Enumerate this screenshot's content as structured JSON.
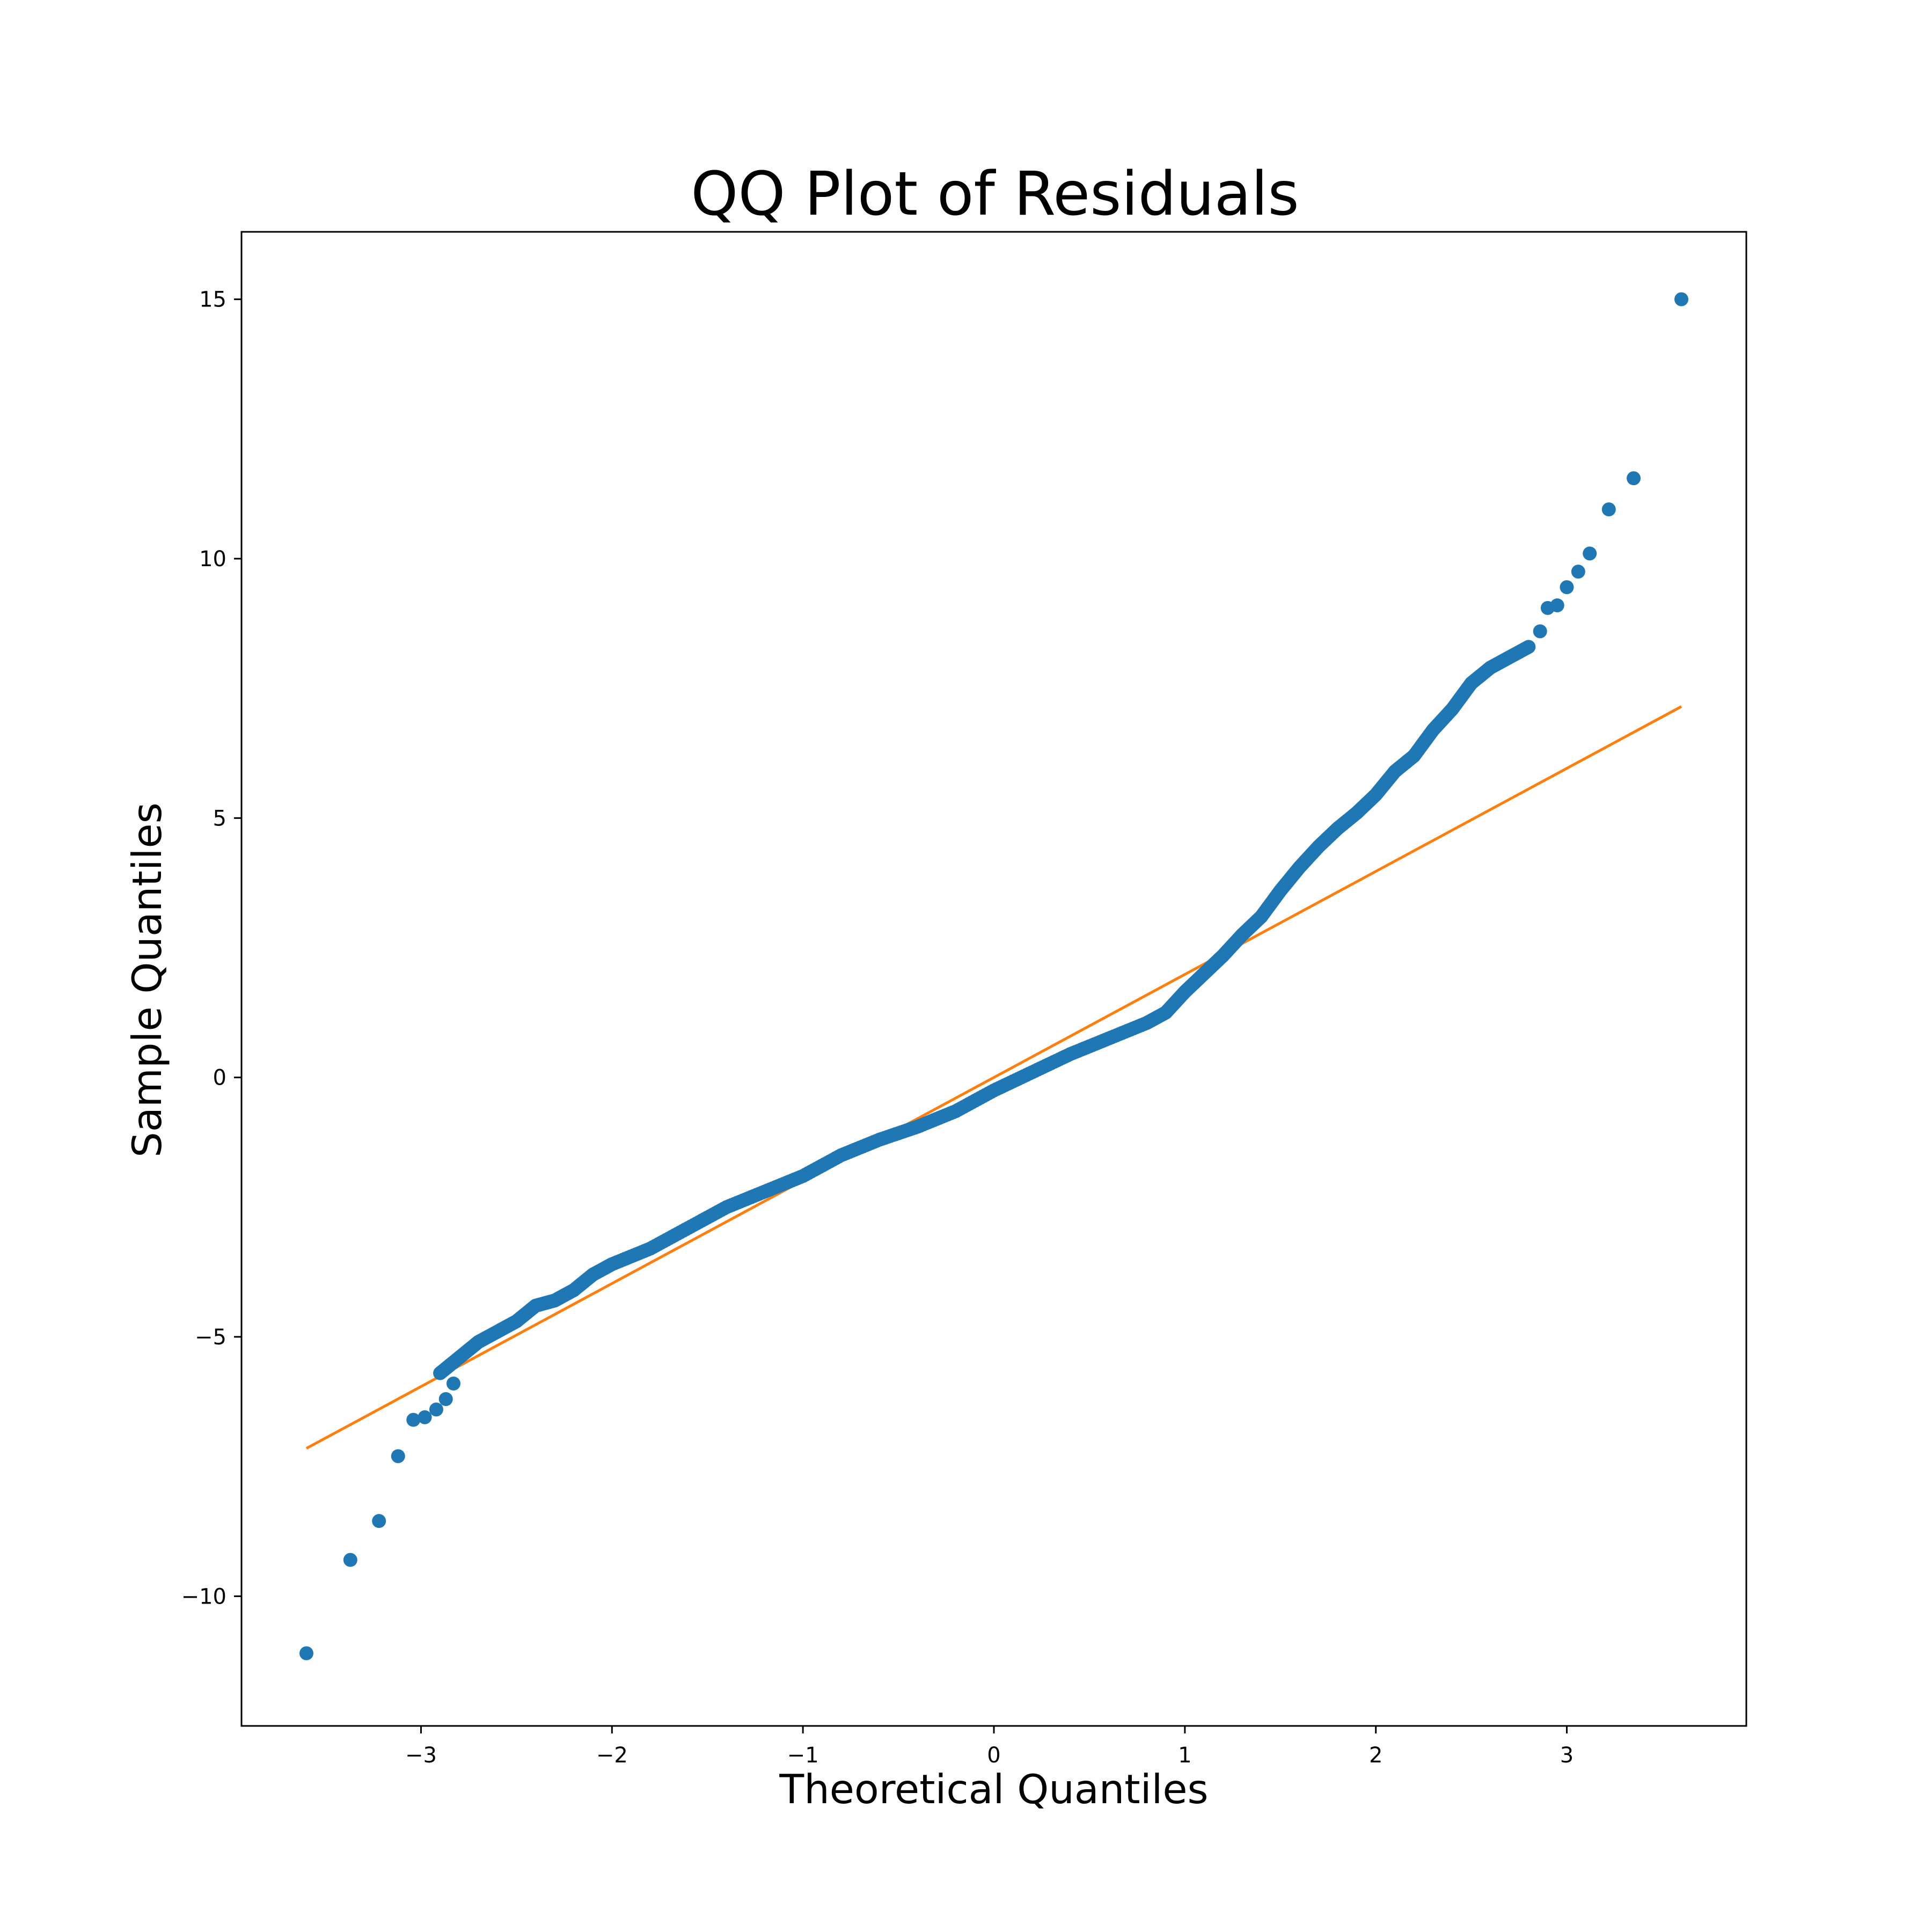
{
  "chart_data": {
    "type": "scatter",
    "title": "QQ Plot of Residuals",
    "xlabel": "Theoretical Quantiles",
    "ylabel": "Sample Quantiles",
    "xlim": [
      -3.94,
      3.94
    ],
    "ylim": [
      -12.5,
      16.3
    ],
    "grid": false,
    "x_ticks": [
      -3,
      -2,
      -1,
      0,
      1,
      2,
      3
    ],
    "x_tick_labels": [
      "−3",
      "−2",
      "−1",
      "0",
      "1",
      "2",
      "3"
    ],
    "y_ticks": [
      -10,
      -5,
      0,
      5,
      10,
      15
    ],
    "y_tick_labels": [
      "−10",
      "−5",
      "0",
      "5",
      "10",
      "15"
    ],
    "colors": {
      "points": "#1f77b4",
      "reference_line": "#ff7f0e"
    },
    "reference_line": {
      "x": [
        -3.6,
        3.6
      ],
      "y": [
        -7.15,
        7.15
      ]
    },
    "sample_curve": {
      "x": [
        -2.9,
        -2.8,
        -2.7,
        -2.6,
        -2.5,
        -2.4,
        -2.3,
        -2.2,
        -2.1,
        -2.0,
        -1.8,
        -1.6,
        -1.4,
        -1.2,
        -1.0,
        -0.8,
        -0.6,
        -0.4,
        -0.2,
        0.0,
        0.2,
        0.4,
        0.6,
        0.8,
        0.9,
        1.0,
        1.1,
        1.2,
        1.3,
        1.4,
        1.5,
        1.6,
        1.7,
        1.8,
        1.9,
        2.0,
        2.1,
        2.2,
        2.3,
        2.4,
        2.5,
        2.6,
        2.7,
        2.8
      ],
      "y": [
        -5.7,
        -5.4,
        -5.1,
        -4.9,
        -4.7,
        -4.4,
        -4.3,
        -4.1,
        -3.8,
        -3.6,
        -3.3,
        -2.9,
        -2.5,
        -2.2,
        -1.9,
        -1.5,
        -1.2,
        -0.95,
        -0.65,
        -0.25,
        0.1,
        0.45,
        0.75,
        1.05,
        1.25,
        1.65,
        2.0,
        2.35,
        2.75,
        3.1,
        3.6,
        4.05,
        4.45,
        4.8,
        5.1,
        5.45,
        5.9,
        6.2,
        6.7,
        7.1,
        7.6,
        7.9,
        8.1,
        8.3
      ]
    },
    "tail_points": {
      "x": [
        -3.6,
        -3.37,
        -3.22,
        -3.12,
        -3.04,
        -2.98,
        -2.92,
        -2.87,
        -2.83,
        2.86,
        2.9,
        2.95,
        3.0,
        3.06,
        3.12,
        3.22,
        3.35,
        3.6
      ],
      "y": [
        -11.1,
        -9.3,
        -8.55,
        -7.3,
        -6.6,
        -6.55,
        -6.4,
        -6.2,
        -5.9,
        8.6,
        9.05,
        9.1,
        9.45,
        9.75,
        10.1,
        10.95,
        11.55,
        15.0
      ]
    }
  }
}
